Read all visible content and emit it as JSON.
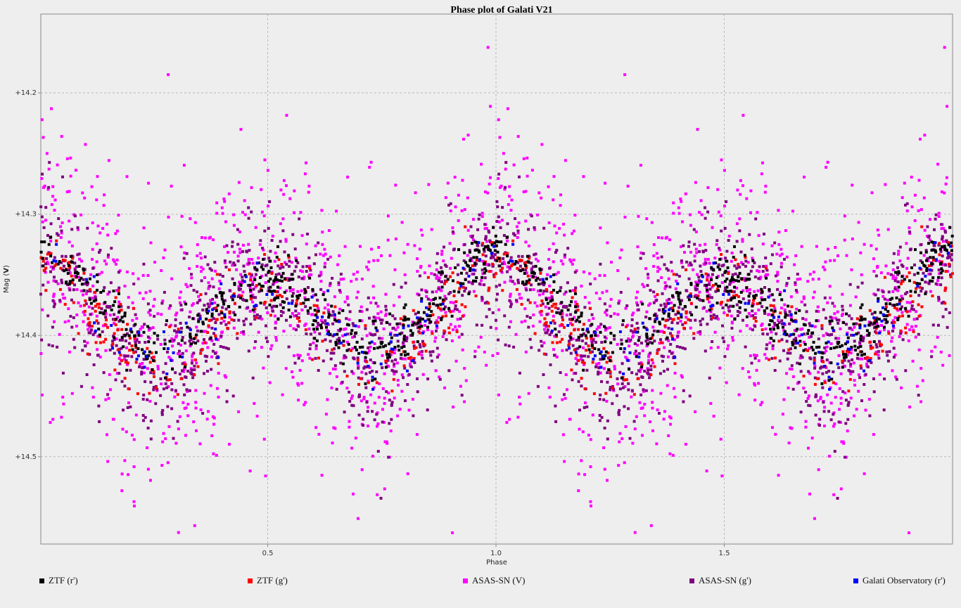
{
  "chart_data": {
    "type": "scatter",
    "title": "Phase plot of Galati V21",
    "xlabel": "Phase",
    "ylabel_prefix": "Mag (",
    "ylabel_band": "V",
    "ylabel_suffix": ")",
    "xlim": [
      0.003,
      2.0
    ],
    "ylim": [
      14.135,
      14.572
    ],
    "y_inverted": true,
    "grid": true,
    "legend_position": "bottom",
    "x_ticks": [
      {
        "value": 0.5,
        "label": "0.5"
      },
      {
        "value": 1.0,
        "label": "1.0"
      },
      {
        "value": 1.5,
        "label": "1.5"
      }
    ],
    "y_ticks": [
      {
        "value": 14.2,
        "label": "+14.2"
      },
      {
        "value": 14.3,
        "label": "+14.3"
      },
      {
        "value": 14.4,
        "label": "+14.4"
      },
      {
        "value": 14.5,
        "label": "+14.5"
      }
    ],
    "light_curve_model": {
      "mean_mag": 14.378,
      "harmonics": [
        {
          "n": 1,
          "amp": 0.01,
          "phase_peak": 0.0
        },
        {
          "n": 2,
          "amp": 0.035,
          "phase_peak": 0.0
        }
      ],
      "note_duplicated_range": [
        1.0,
        2.0
      ]
    },
    "series": [
      {
        "name": "ZTF (r')",
        "color": "#000000",
        "count": 420,
        "scatter_mag": 0.012,
        "offset_mag": 0.0
      },
      {
        "name": "ZTF (g')",
        "color": "#ff0000",
        "count": 260,
        "scatter_mag": 0.016,
        "offset_mag": 0.012
      },
      {
        "name": "ASAS-SN (V)",
        "color": "#ff00ff",
        "count": 900,
        "scatter_mag": 0.058,
        "offset_mag": 0.0
      },
      {
        "name": "ASAS-SN (g')",
        "color": "#800080",
        "count": 780,
        "scatter_mag": 0.032,
        "offset_mag": 0.008
      },
      {
        "name": "Galati Observatory (r')",
        "color": "#0000ff",
        "count": 90,
        "scatter_mag": 0.012,
        "offset_mag": 0.002
      }
    ],
    "legend": [
      {
        "label": "ZTF (r')",
        "color": "#000000"
      },
      {
        "label": "ZTF (g')",
        "color": "#ff0000"
      },
      {
        "label": "ASAS-SN (V)",
        "color": "#ff00ff"
      },
      {
        "label": "ASAS-SN (g')",
        "color": "#800080"
      },
      {
        "label": "Galati Observatory (r')",
        "color": "#0000ff"
      }
    ]
  },
  "colors": {
    "page_background": "#eeeeee",
    "plot_background": "#eeeeee",
    "grid": "#b8b8b8",
    "axis": "#888888"
  }
}
